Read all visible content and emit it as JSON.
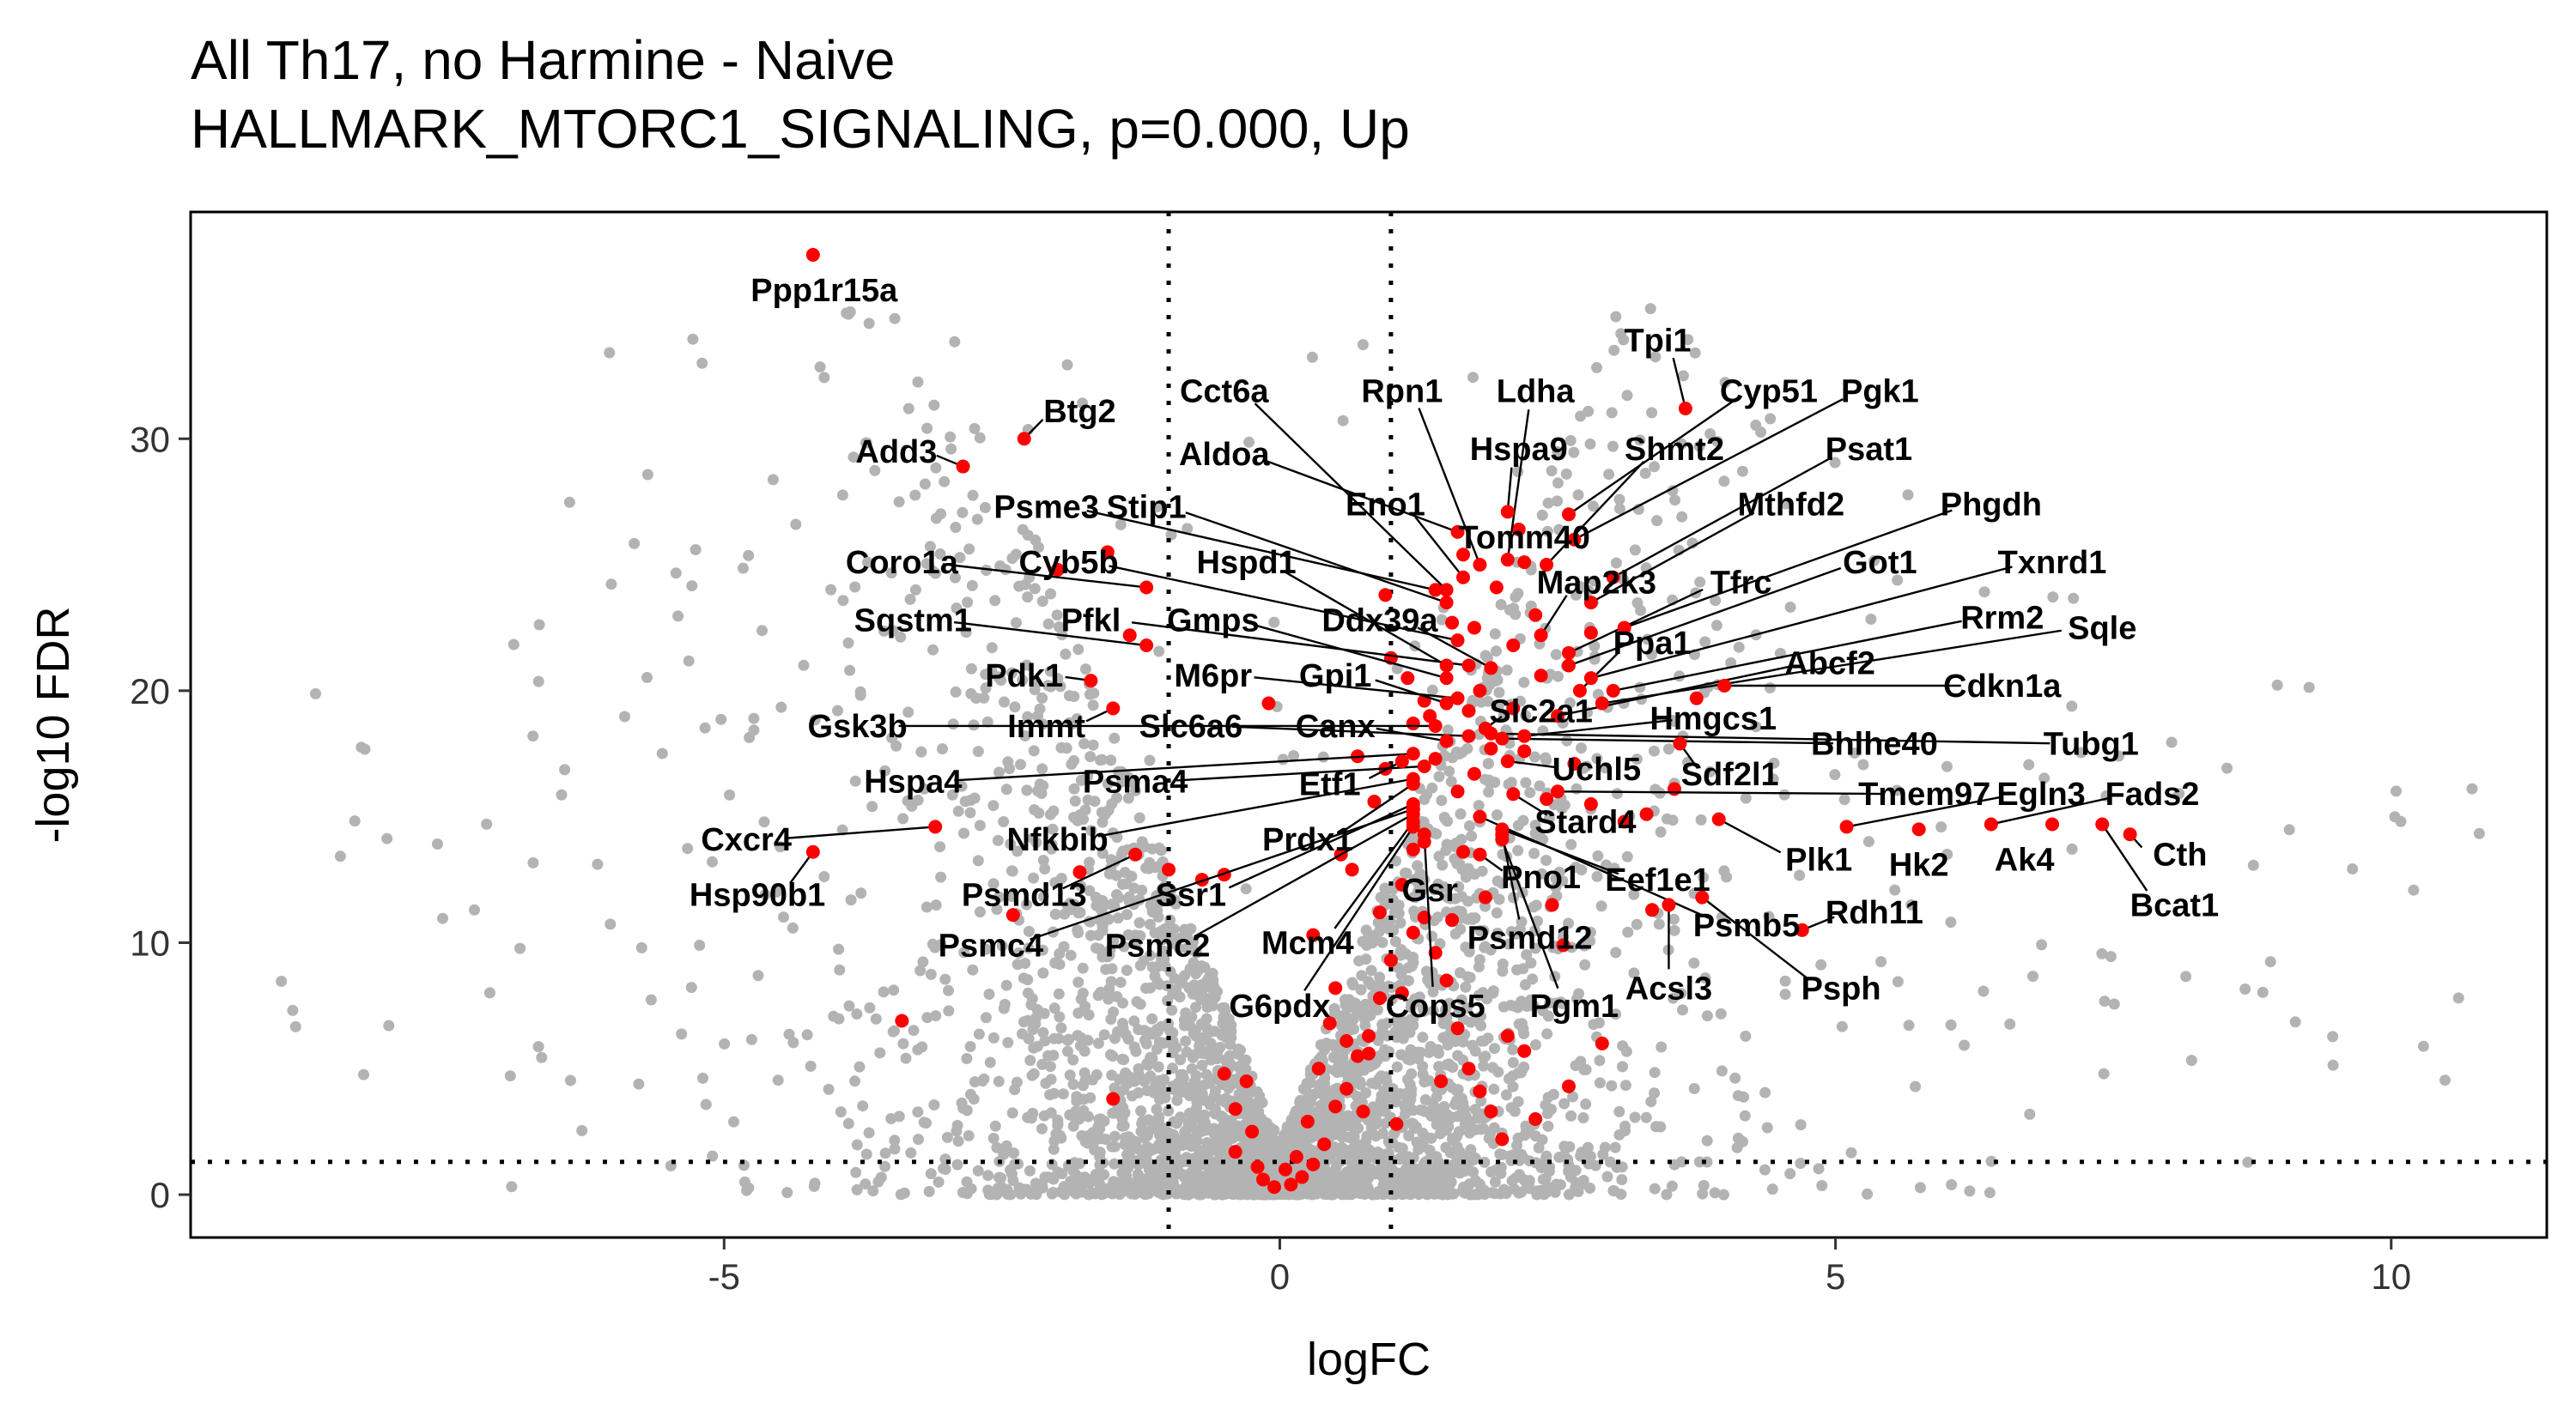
{
  "chart_data": {
    "type": "scatter",
    "title": "All Th17, no Harmine - Naive",
    "subtitle": "HALLMARK_MTORC1_SIGNALING, p=0.000, Up",
    "xlabel": "logFC",
    "ylabel": "-log10 FDR",
    "xlim": [
      -9.8,
      11.4
    ],
    "ylim": [
      -1.7,
      39
    ],
    "x_ticks": [
      -5,
      0,
      5,
      10
    ],
    "x_tick_labels": [
      "-5",
      "0",
      "5",
      "10"
    ],
    "y_ticks": [
      0,
      10,
      20,
      30
    ],
    "y_tick_labels": [
      "0",
      "10",
      "20",
      "30"
    ],
    "grid": false,
    "legend": "none",
    "reference_lines": {
      "vertical": [
        -1,
        1
      ],
      "horizontal": [
        1.3
      ]
    },
    "colors": {
      "background_genes": "#b3b3b3",
      "highlighted_genes": "#ff0000",
      "annotation": "#000000"
    },
    "highlighted": [
      {
        "gene": "Ppp1r15a",
        "x": -4.2,
        "y": 37.3,
        "lx": -4.1,
        "ly": 35.9
      },
      {
        "gene": "Btg2",
        "x": -2.3,
        "y": 30.0,
        "lx": -1.8,
        "ly": 31.1
      },
      {
        "gene": "Add3",
        "x": -2.85,
        "y": 28.9,
        "lx": -3.45,
        "ly": 29.5
      },
      {
        "gene": "Psme3",
        "x": 1.4,
        "y": 24.0,
        "lx": -2.1,
        "ly": 27.3
      },
      {
        "gene": "Stip1",
        "x": 1.5,
        "y": 23.5,
        "lx": -1.2,
        "ly": 27.3
      },
      {
        "gene": "Coro1a",
        "x": -1.2,
        "y": 24.1,
        "lx": -3.4,
        "ly": 25.1
      },
      {
        "gene": "Cyb5b",
        "x": 1.6,
        "y": 22.0,
        "lx": -1.9,
        "ly": 25.1
      },
      {
        "gene": "Hspd1",
        "x": 1.5,
        "y": 21.0,
        "lx": -0.3,
        "ly": 25.1
      },
      {
        "gene": "Sqstm1",
        "x": -1.2,
        "y": 21.8,
        "lx": -3.3,
        "ly": 22.8
      },
      {
        "gene": "Pfkl",
        "x": 1.7,
        "y": 21.0,
        "lx": -1.7,
        "ly": 22.8
      },
      {
        "gene": "Gmps",
        "x": 1.5,
        "y": 20.5,
        "lx": -0.6,
        "ly": 22.8
      },
      {
        "gene": "Ddx39a",
        "x": 1.9,
        "y": 20.9,
        "lx": 0.9,
        "ly": 22.8
      },
      {
        "gene": "Pdk1",
        "x": -1.7,
        "y": 20.4,
        "lx": -2.3,
        "ly": 20.6
      },
      {
        "gene": "M6pr",
        "x": 1.6,
        "y": 19.7,
        "lx": -0.6,
        "ly": 20.6
      },
      {
        "gene": "Gpi1",
        "x": 1.5,
        "y": 19.5,
        "lx": 0.5,
        "ly": 20.6
      },
      {
        "gene": "Gsk3b",
        "x": 1.4,
        "y": 18.6,
        "lx": -3.8,
        "ly": 18.6
      },
      {
        "gene": "Immt",
        "x": -1.5,
        "y": 19.3,
        "lx": -2.1,
        "ly": 18.6
      },
      {
        "gene": "Slc6a6",
        "x": 1.7,
        "y": 18.2,
        "lx": -0.8,
        "ly": 18.6
      },
      {
        "gene": "Canx",
        "x": 1.5,
        "y": 18.0,
        "lx": 0.5,
        "ly": 18.6
      },
      {
        "gene": "Cct6a",
        "x": 1.5,
        "y": 24.0,
        "lx": -0.5,
        "ly": 31.9
      },
      {
        "gene": "Rpn1",
        "x": 1.8,
        "y": 25.0,
        "lx": 1.1,
        "ly": 31.9
      },
      {
        "gene": "Aldoa",
        "x": 1.6,
        "y": 26.3,
        "lx": -0.5,
        "ly": 29.4
      },
      {
        "gene": "Eno1",
        "x": 1.65,
        "y": 24.5,
        "lx": 0.95,
        "ly": 27.4
      },
      {
        "gene": "Ldha",
        "x": 2.05,
        "y": 25.2,
        "lx": 2.3,
        "ly": 31.9
      },
      {
        "gene": "Hspa9",
        "x": 2.05,
        "y": 27.1,
        "lx": 2.15,
        "ly": 29.6
      },
      {
        "gene": "Tomm40",
        "x": 2.2,
        "y": 25.1,
        "lx": 2.2,
        "ly": 26.1
      },
      {
        "gene": "Tpi1",
        "x": 3.65,
        "y": 31.2,
        "lx": 3.4,
        "ly": 33.9
      },
      {
        "gene": "Cyp51",
        "x": 2.6,
        "y": 27.0,
        "lx": 4.4,
        "ly": 31.9
      },
      {
        "gene": "Pgk1",
        "x": 2.65,
        "y": 26.0,
        "lx": 5.4,
        "ly": 31.9
      },
      {
        "gene": "Shmt2",
        "x": 2.4,
        "y": 25.0,
        "lx": 3.55,
        "ly": 29.6
      },
      {
        "gene": "Psat1",
        "x": 3.0,
        "y": 24.5,
        "lx": 5.3,
        "ly": 29.6
      },
      {
        "gene": "Mthfd2",
        "x": 2.8,
        "y": 23.5,
        "lx": 4.6,
        "ly": 27.4
      },
      {
        "gene": "Phgdh",
        "x": 3.1,
        "y": 22.5,
        "lx": 6.4,
        "ly": 27.4
      },
      {
        "gene": "Map2k3",
        "x": 2.35,
        "y": 22.2,
        "lx": 2.85,
        "ly": 24.3
      },
      {
        "gene": "Tfrc",
        "x": 2.6,
        "y": 21.5,
        "lx": 4.15,
        "ly": 24.3
      },
      {
        "gene": "Got1",
        "x": 2.6,
        "y": 21.0,
        "lx": 5.4,
        "ly": 25.1
      },
      {
        "gene": "Txnrd1",
        "x": 2.8,
        "y": 20.5,
        "lx": 6.95,
        "ly": 25.1
      },
      {
        "gene": "Ppa1",
        "x": 2.7,
        "y": 20.0,
        "lx": 3.35,
        "ly": 21.9
      },
      {
        "gene": "Rrm2",
        "x": 3.0,
        "y": 20.0,
        "lx": 6.5,
        "ly": 22.9
      },
      {
        "gene": "Sqle",
        "x": 2.9,
        "y": 19.5,
        "lx": 7.4,
        "ly": 22.5
      },
      {
        "gene": "Abcf2",
        "x": 2.5,
        "y": 19.0,
        "lx": 4.95,
        "ly": 21.1
      },
      {
        "gene": "Cdkn1a",
        "x": 4.0,
        "y": 20.2,
        "lx": 6.5,
        "ly": 20.2
      },
      {
        "gene": "Slc2a1",
        "x": 1.85,
        "y": 18.5,
        "lx": 2.35,
        "ly": 19.2
      },
      {
        "gene": "Hmgcs1",
        "x": 2.2,
        "y": 18.2,
        "lx": 3.9,
        "ly": 18.9
      },
      {
        "gene": "Bhlhe40",
        "x": 2.0,
        "y": 18.1,
        "lx": 5.35,
        "ly": 17.9
      },
      {
        "gene": "Tubg1",
        "x": 1.9,
        "y": 18.3,
        "lx": 7.3,
        "ly": 17.9
      },
      {
        "gene": "Uchl5",
        "x": 2.05,
        "y": 17.2,
        "lx": 2.85,
        "ly": 16.9
      },
      {
        "gene": "Sdf2l1",
        "x": 3.6,
        "y": 17.9,
        "lx": 4.05,
        "ly": 16.7
      },
      {
        "gene": "Tmem97",
        "x": 2.5,
        "y": 16.0,
        "lx": 5.8,
        "ly": 15.9
      },
      {
        "gene": "Egln3",
        "x": 5.1,
        "y": 14.6,
        "lx": 6.85,
        "ly": 15.9
      },
      {
        "gene": "Fads2",
        "x": 6.4,
        "y": 14.7,
        "lx": 7.85,
        "ly": 15.9
      },
      {
        "gene": "Stard4",
        "x": 2.1,
        "y": 15.9,
        "lx": 2.75,
        "ly": 14.8
      },
      {
        "gene": "Plk1",
        "x": 3.95,
        "y": 14.9,
        "lx": 4.85,
        "ly": 13.3
      },
      {
        "gene": "Hk2",
        "x": 5.75,
        "y": 14.5,
        "lx": 5.75,
        "ly": 13.1
      },
      {
        "gene": "Ak4",
        "x": 6.95,
        "y": 14.7,
        "lx": 6.7,
        "ly": 13.3
      },
      {
        "gene": "Cth",
        "x": 7.65,
        "y": 14.3,
        "lx": 8.1,
        "ly": 13.5
      },
      {
        "gene": "Bcat1",
        "x": 7.4,
        "y": 14.7,
        "lx": 8.05,
        "ly": 11.5
      },
      {
        "gene": "Eef1e1",
        "x": 2.0,
        "y": 14.5,
        "lx": 3.4,
        "ly": 12.5
      },
      {
        "gene": "Pno1",
        "x": 1.8,
        "y": 13.5,
        "lx": 2.35,
        "ly": 12.6
      },
      {
        "gene": "Psmb5",
        "x": 1.8,
        "y": 15.0,
        "lx": 4.2,
        "ly": 10.7
      },
      {
        "gene": "Rdh11",
        "x": 4.7,
        "y": 10.5,
        "lx": 5.35,
        "ly": 11.2
      },
      {
        "gene": "Hspa4",
        "x": 1.2,
        "y": 17.5,
        "lx": -3.3,
        "ly": 16.4
      },
      {
        "gene": "Psma4",
        "x": 1.3,
        "y": 17.0,
        "lx": -1.3,
        "ly": 16.4
      },
      {
        "gene": "Etf1",
        "x": 1.1,
        "y": 17.2,
        "lx": 0.45,
        "ly": 16.3
      },
      {
        "gene": "Cxcr4",
        "x": -3.1,
        "y": 14.6,
        "lx": -4.8,
        "ly": 14.1
      },
      {
        "gene": "Nfkbib",
        "x": 1.2,
        "y": 16.5,
        "lx": -2.0,
        "ly": 14.1
      },
      {
        "gene": "Prdx1",
        "x": 1.2,
        "y": 16.3,
        "lx": 0.25,
        "ly": 14.1
      },
      {
        "gene": "Hsp90b1",
        "x": -4.2,
        "y": 13.6,
        "lx": -4.7,
        "ly": 11.9
      },
      {
        "gene": "Psmd13",
        "x": -1.3,
        "y": 13.5,
        "lx": -2.3,
        "ly": 11.9
      },
      {
        "gene": "Ssr1",
        "x": 1.2,
        "y": 15.5,
        "lx": -0.8,
        "ly": 11.9
      },
      {
        "gene": "Gsr",
        "x": 1.3,
        "y": 14.0,
        "lx": 1.35,
        "ly": 12.1
      },
      {
        "gene": "Psmc4",
        "x": 1.2,
        "y": 15.3,
        "lx": -2.6,
        "ly": 9.9
      },
      {
        "gene": "Psmc2",
        "x": 1.2,
        "y": 15.1,
        "lx": -1.1,
        "ly": 9.9
      },
      {
        "gene": "Mcm4",
        "x": 1.2,
        "y": 14.8,
        "lx": 0.25,
        "ly": 10.0
      },
      {
        "gene": "Psmd12",
        "x": 2.0,
        "y": 14.3,
        "lx": 2.25,
        "ly": 10.2
      },
      {
        "gene": "G6pdx",
        "x": 1.2,
        "y": 14.6,
        "lx": 0.0,
        "ly": 7.5
      },
      {
        "gene": "Cops5",
        "x": 1.3,
        "y": 14.3,
        "lx": 1.4,
        "ly": 7.5
      },
      {
        "gene": "Pgm1",
        "x": 2.0,
        "y": 14.1,
        "lx": 2.65,
        "ly": 7.5
      },
      {
        "gene": "Acsl3",
        "x": 3.5,
        "y": 11.5,
        "lx": 3.5,
        "ly": 8.2
      },
      {
        "gene": "Psph",
        "x": 3.8,
        "y": 11.8,
        "lx": 5.05,
        "ly": 8.2
      }
    ],
    "highlighted_unlabeled": [
      [
        -1.35,
        22.2
      ],
      [
        -2.0,
        24.8
      ],
      [
        -1.55,
        25.5
      ],
      [
        -0.1,
        19.5
      ],
      [
        -1.8,
        12.8
      ],
      [
        -1.0,
        12.9
      ],
      [
        -0.5,
        12.7
      ],
      [
        -2.4,
        11.1
      ],
      [
        -3.4,
        6.9
      ],
      [
        -1.5,
        3.8
      ],
      [
        -0.5,
        4.8
      ],
      [
        -0.3,
        4.5
      ],
      [
        -0.25,
        2.5
      ],
      [
        -0.4,
        1.7
      ],
      [
        -0.15,
        0.6
      ],
      [
        -0.05,
        0.3
      ],
      [
        0.1,
        0.4
      ],
      [
        0.2,
        0.7
      ],
      [
        0.3,
        1.2
      ],
      [
        0.4,
        2.0
      ],
      [
        0.5,
        3.5
      ],
      [
        0.6,
        4.2
      ],
      [
        0.7,
        5.5
      ],
      [
        0.8,
        6.3
      ],
      [
        0.9,
        7.8
      ],
      [
        1.0,
        9.3
      ],
      [
        1.1,
        8.0
      ],
      [
        1.2,
        10.4
      ],
      [
        1.3,
        11.0
      ],
      [
        1.4,
        9.6
      ],
      [
        1.5,
        8.5
      ],
      [
        1.6,
        6.6
      ],
      [
        1.7,
        5.0
      ],
      [
        1.8,
        4.1
      ],
      [
        1.9,
        3.3
      ],
      [
        2.0,
        2.2
      ],
      [
        2.2,
        5.7
      ],
      [
        2.3,
        3.0
      ],
      [
        2.6,
        4.3
      ],
      [
        2.9,
        6.0
      ],
      [
        0.5,
        8.2
      ],
      [
        0.6,
        6.1
      ],
      [
        0.8,
        5.6
      ],
      [
        1.2,
        13.7
      ],
      [
        1.1,
        12.3
      ],
      [
        0.9,
        11.2
      ],
      [
        1.4,
        17.3
      ],
      [
        1.6,
        16.0
      ],
      [
        1.3,
        19.6
      ],
      [
        1.7,
        19.2
      ],
      [
        1.9,
        17.7
      ],
      [
        2.2,
        17.6
      ],
      [
        2.4,
        15.7
      ],
      [
        2.8,
        15.5
      ],
      [
        3.1,
        14.8
      ],
      [
        3.3,
        15.1
      ],
      [
        1.2,
        18.7
      ],
      [
        1.8,
        20.0
      ],
      [
        2.1,
        19.3
      ],
      [
        1.0,
        21.3
      ],
      [
        0.95,
        23.8
      ],
      [
        2.3,
        23.0
      ],
      [
        1.65,
        25.4
      ],
      [
        1.55,
        22.7
      ],
      [
        1.75,
        16.7
      ],
      [
        0.7,
        17.4
      ],
      [
        0.85,
        15.6
      ],
      [
        0.3,
        10.3
      ],
      [
        0.45,
        6.8
      ],
      [
        0.65,
        12.9
      ],
      [
        -0.7,
        12.5
      ],
      [
        0.15,
        1.5
      ],
      [
        -0.2,
        1.1
      ],
      [
        0.25,
        2.9
      ],
      [
        0.05,
        1.0
      ],
      [
        -0.4,
        3.4
      ],
      [
        0.35,
        5.0
      ],
      [
        1.05,
        2.8
      ],
      [
        0.75,
        3.3
      ],
      [
        1.45,
        4.5
      ],
      [
        2.05,
        6.3
      ],
      [
        2.45,
        11.5
      ],
      [
        2.55,
        9.9
      ],
      [
        3.35,
        11.3
      ],
      [
        1.55,
        10.9
      ],
      [
        1.85,
        11.8
      ],
      [
        1.65,
        13.6
      ],
      [
        2.65,
        17.1
      ],
      [
        3.55,
        16.1
      ],
      [
        2.1,
        21.8
      ],
      [
        2.35,
        20.6
      ],
      [
        1.95,
        24.1
      ],
      [
        2.15,
        26.4
      ],
      [
        0.55,
        13.5
      ],
      [
        0.95,
        16.9
      ],
      [
        1.35,
        19.0
      ],
      [
        3.75,
        19.7
      ],
      [
        2.8,
        22.3
      ],
      [
        1.15,
        20.5
      ],
      [
        1.75,
        22.5
      ]
    ]
  }
}
